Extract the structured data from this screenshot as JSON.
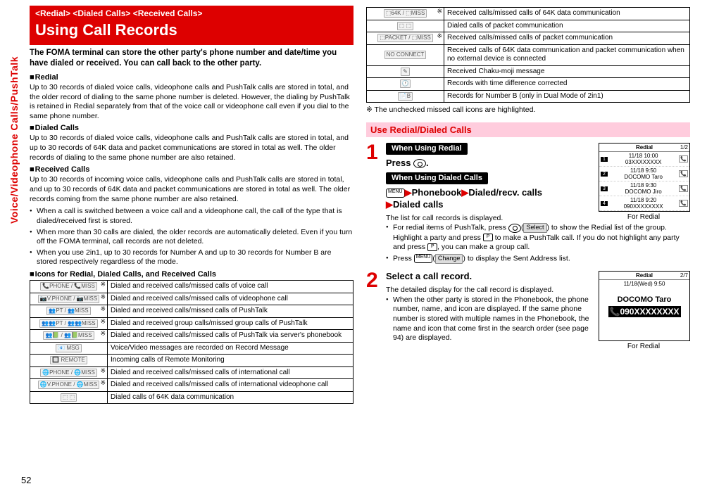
{
  "side_tab": "Voice/Videophone Calls/PushTalk",
  "page_number": "52",
  "header": {
    "crumbs": "<Redial> <Dialed Calls> <Received Calls>",
    "title": "Using Call Records"
  },
  "lead": "The FOMA terminal can store the other party's phone number and date/time you have dialed or received. You can call back to the other party.",
  "sections": {
    "redial": {
      "label": "Redial",
      "text": "Up to 30 records of dialed voice calls, videophone calls and PushTalk calls are stored in total, and the older record of dialing to the same phone number is deleted. However, the dialing by PushTalk is retained in Redial separately from that of the voice call or videophone call even if you dial to the same phone number."
    },
    "dialed": {
      "label": "Dialed Calls",
      "text": "Up to 30 records of dialed voice calls, videophone calls and PushTalk calls are stored in total, and up to 30 records of 64K data and packet communications are stored in total as well. The older records of dialing to the same phone number are also retained."
    },
    "received": {
      "label": "Received Calls",
      "text": "Up to 30 records of incoming voice calls, videophone calls and PushTalk calls are stored in total, and up to 30 records of 64K data and packet communications are stored in total as well. The older records coming from the same phone number are also retained.",
      "bullets": [
        "When a call is switched between a voice call and a videophone call, the call of the type that is dialed/received first is stored.",
        "When more than 30 calls are dialed, the older records are automatically deleted. Even if you turn off the FOMA terminal, call records are not deleted.",
        "When you use 2in1, up to 30 records for Number A and up to 30 records for Number B are stored respectively regardless of the mode."
      ]
    },
    "icons_label": "Icons for Redial, Dialed Calls, and Received Calls"
  },
  "icon_rows_left": [
    {
      "ic": "📞PHONE / 📞MISS",
      "star": true,
      "desc": "Dialed and received calls/missed calls of voice call"
    },
    {
      "ic": "📷V.PHONE / 📷MISS",
      "star": true,
      "desc": "Dialed and received calls/missed calls of videophone call"
    },
    {
      "ic": "👥PT / 👥MISS",
      "star": true,
      "desc": "Dialed and received calls/missed calls of PushTalk"
    },
    {
      "ic": "👥👥PT / 👥👥MISS",
      "star": true,
      "desc": "Dialed and received group calls/missed group calls of PushTalk"
    },
    {
      "ic": "👥📗 / 👥📗MISS",
      "star": true,
      "desc": "Dialed and received calls/missed calls of PushTalk via server's phonebook"
    },
    {
      "ic": "📧 MSG",
      "star": false,
      "desc": "Voice/Video messages are recorded on Record Message"
    },
    {
      "ic": "🔲 REMOTE",
      "star": false,
      "desc": "Incoming calls of Remote Monitoring"
    },
    {
      "ic": "🌐PHONE / 🌐MISS",
      "star": true,
      "desc": "Dialed and received calls/missed calls of international call"
    },
    {
      "ic": "🌐V.PHONE / 🌐MISS",
      "star": true,
      "desc": "Dialed and received calls/missed calls of international videophone call"
    },
    {
      "ic": "⬚ ⬚",
      "star": false,
      "desc": "Dialed calls of 64K data communication"
    }
  ],
  "icon_rows_right": [
    {
      "ic": "⬚64K / ⬚MISS",
      "star": true,
      "desc": "Received calls/missed calls of 64K data communication"
    },
    {
      "ic": "⬚ ⬚",
      "star": false,
      "desc": "Dialed calls of packet communication"
    },
    {
      "ic": "⬚PACKET / ⬚MISS",
      "star": true,
      "desc": "Received calls/missed calls of packet communication"
    },
    {
      "ic": "NO CONNECT",
      "star": false,
      "desc": "Received calls of 64K data communication and packet communication when no external device is connected"
    },
    {
      "ic": "✎",
      "star": false,
      "desc": "Received Chaku-moji message"
    },
    {
      "ic": "🕐",
      "star": false,
      "desc": "Records with time difference corrected"
    },
    {
      "ic": "📄B",
      "star": false,
      "desc": "Records for Number B (only in Dual Mode of 2in1)"
    }
  ],
  "footnote": "※ The unchecked missed call icons are highlighted.",
  "use_section": {
    "bar": "Use Redial/Dialed Calls",
    "step1": {
      "pill_redial": "When Using Redial",
      "press_label": "Press ",
      "press_after": ".",
      "pill_dialed": "When Using Dialed Calls",
      "path1": "Phonebook",
      "path2": "Dialed/recv. calls",
      "path3": "Dialed calls",
      "desc": "The list for call records is displayed.",
      "bullets": [
        "For redial items of PushTalk, press ⬭(Select) to show the Redial list of the group. Highlight a party and press ⬜ to make a PushTalk call. If you do not highlight any party and press ⬜, you can make a group call.",
        "Press MENU(Change) to display the Sent Address list."
      ],
      "shot_caption": "For Redial",
      "shot": {
        "title": "Redial",
        "page": "1/2",
        "rows": [
          {
            "n": "1",
            "t": "11/18 10:00",
            "name": "03XXXXXXXX"
          },
          {
            "n": "2",
            "t": "11/18  9:50",
            "name": "DOCOMO Taro"
          },
          {
            "n": "3",
            "t": "11/18  9:30",
            "name": "DOCOMO Jiro"
          },
          {
            "n": "4",
            "t": "11/18  9:20",
            "name": "090XXXXXXXX"
          }
        ]
      }
    },
    "step2": {
      "action": "Select a call record.",
      "desc": "The detailed display for the call record is displayed.",
      "bullet": "When the other party is stored in the Phonebook, the phone number, name, and icon are displayed. If the same phone number is stored with multiple names in the Phonebook, the name and icon that come first in the search order (see page 94) are displayed.",
      "shot_caption": "For Redial",
      "shot": {
        "title": "Redial",
        "page": "2/7",
        "date": "11/18(Wed) 9:50",
        "name": "DOCOMO Taro",
        "number": "📞090XXXXXXXX"
      }
    }
  }
}
